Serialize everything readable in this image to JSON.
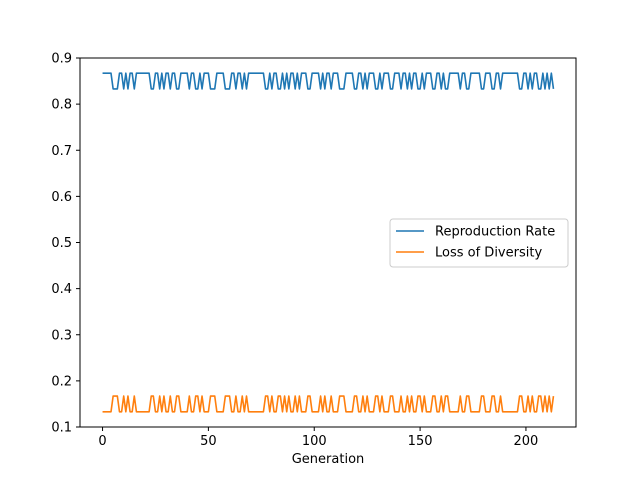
{
  "chart_data": {
    "type": "line",
    "title": "",
    "xlabel": "Generation",
    "ylabel": "",
    "xlim": [
      -10.65,
      223.65
    ],
    "ylim": [
      0.1,
      0.9
    ],
    "x_ticks": [
      0,
      50,
      100,
      150,
      200
    ],
    "y_ticks": [
      0.1,
      0.2,
      0.3,
      0.4,
      0.5,
      0.6,
      0.7,
      0.8,
      0.9
    ],
    "grid": false,
    "legend_position": "center-right",
    "x": [
      0,
      1,
      2,
      3,
      4,
      5,
      6,
      7,
      8,
      9,
      10,
      11,
      12,
      13,
      14,
      15,
      16,
      17,
      18,
      19,
      20,
      21,
      22,
      23,
      24,
      25,
      26,
      27,
      28,
      29,
      30,
      31,
      32,
      33,
      34,
      35,
      36,
      37,
      38,
      39,
      40,
      41,
      42,
      43,
      44,
      45,
      46,
      47,
      48,
      49,
      50,
      51,
      52,
      53,
      54,
      55,
      56,
      57,
      58,
      59,
      60,
      61,
      62,
      63,
      64,
      65,
      66,
      67,
      68,
      69,
      70,
      71,
      72,
      73,
      74,
      75,
      76,
      77,
      78,
      79,
      80,
      81,
      82,
      83,
      84,
      85,
      86,
      87,
      88,
      89,
      90,
      91,
      92,
      93,
      94,
      95,
      96,
      97,
      98,
      99,
      100,
      101,
      102,
      103,
      104,
      105,
      106,
      107,
      108,
      109,
      110,
      111,
      112,
      113,
      114,
      115,
      116,
      117,
      118,
      119,
      120,
      121,
      122,
      123,
      124,
      125,
      126,
      127,
      128,
      129,
      130,
      131,
      132,
      133,
      134,
      135,
      136,
      137,
      138,
      139,
      140,
      141,
      142,
      143,
      144,
      145,
      146,
      147,
      148,
      149,
      150,
      151,
      152,
      153,
      154,
      155,
      156,
      157,
      158,
      159,
      160,
      161,
      162,
      163,
      164,
      165,
      166,
      167,
      168,
      169,
      170,
      171,
      172,
      173,
      174,
      175,
      176,
      177,
      178,
      179,
      180,
      181,
      182,
      183,
      184,
      185,
      186,
      187,
      188,
      189,
      190,
      191,
      192,
      193,
      194,
      195,
      196,
      197,
      198,
      199,
      200,
      201,
      202,
      203,
      204,
      205,
      206,
      207,
      208,
      209,
      210,
      211,
      212,
      213
    ],
    "series": [
      {
        "name": "Reproduction Rate",
        "color": "#1f77b4",
        "values": [
          0.867,
          0.867,
          0.867,
          0.867,
          0.867,
          0.833,
          0.833,
          0.833,
          0.867,
          0.867,
          0.833,
          0.867,
          0.833,
          0.867,
          0.867,
          0.833,
          0.867,
          0.867,
          0.867,
          0.867,
          0.867,
          0.867,
          0.867,
          0.833,
          0.833,
          0.867,
          0.867,
          0.833,
          0.867,
          0.833,
          0.867,
          0.867,
          0.833,
          0.867,
          0.867,
          0.833,
          0.833,
          0.867,
          0.867,
          0.867,
          0.867,
          0.833,
          0.867,
          0.867,
          0.833,
          0.833,
          0.867,
          0.833,
          0.867,
          0.867,
          0.867,
          0.833,
          0.833,
          0.833,
          0.867,
          0.867,
          0.867,
          0.867,
          0.833,
          0.833,
          0.833,
          0.867,
          0.867,
          0.833,
          0.867,
          0.867,
          0.833,
          0.867,
          0.833,
          0.867,
          0.867,
          0.867,
          0.867,
          0.867,
          0.867,
          0.867,
          0.867,
          0.833,
          0.833,
          0.867,
          0.833,
          0.867,
          0.867,
          0.833,
          0.833,
          0.867,
          0.833,
          0.867,
          0.833,
          0.867,
          0.867,
          0.833,
          0.867,
          0.833,
          0.867,
          0.867,
          0.867,
          0.833,
          0.833,
          0.867,
          0.867,
          0.867,
          0.867,
          0.833,
          0.867,
          0.833,
          0.867,
          0.867,
          0.833,
          0.867,
          0.867,
          0.867,
          0.833,
          0.833,
          0.833,
          0.867,
          0.867,
          0.867,
          0.867,
          0.833,
          0.833,
          0.867,
          0.867,
          0.833,
          0.867,
          0.833,
          0.867,
          0.867,
          0.867,
          0.833,
          0.833,
          0.867,
          0.833,
          0.867,
          0.867,
          0.867,
          0.833,
          0.833,
          0.867,
          0.867,
          0.867,
          0.833,
          0.867,
          0.867,
          0.833,
          0.867,
          0.833,
          0.867,
          0.867,
          0.833,
          0.833,
          0.867,
          0.833,
          0.867,
          0.867,
          0.867,
          0.833,
          0.833,
          0.867,
          0.867,
          0.833,
          0.867,
          0.833,
          0.833,
          0.867,
          0.867,
          0.867,
          0.867,
          0.867,
          0.833,
          0.867,
          0.867,
          0.833,
          0.833,
          0.867,
          0.867,
          0.867,
          0.867,
          0.867,
          0.833,
          0.833,
          0.867,
          0.867,
          0.867,
          0.833,
          0.833,
          0.867,
          0.867,
          0.833,
          0.867,
          0.867,
          0.867,
          0.867,
          0.867,
          0.867,
          0.867,
          0.867,
          0.833,
          0.833,
          0.867,
          0.867,
          0.833,
          0.867,
          0.833,
          0.867,
          0.867,
          0.833,
          0.833,
          0.867,
          0.833,
          0.867,
          0.833,
          0.867,
          0.833
        ]
      },
      {
        "name": "Loss of Diversity",
        "color": "#ff7f0e",
        "values": [
          0.133,
          0.133,
          0.133,
          0.133,
          0.133,
          0.167,
          0.167,
          0.167,
          0.133,
          0.133,
          0.167,
          0.133,
          0.167,
          0.133,
          0.133,
          0.167,
          0.133,
          0.133,
          0.133,
          0.133,
          0.133,
          0.133,
          0.133,
          0.167,
          0.167,
          0.133,
          0.133,
          0.167,
          0.133,
          0.167,
          0.133,
          0.133,
          0.167,
          0.133,
          0.133,
          0.167,
          0.167,
          0.133,
          0.133,
          0.133,
          0.133,
          0.167,
          0.133,
          0.133,
          0.167,
          0.167,
          0.133,
          0.167,
          0.133,
          0.133,
          0.133,
          0.167,
          0.167,
          0.167,
          0.133,
          0.133,
          0.133,
          0.133,
          0.167,
          0.167,
          0.167,
          0.133,
          0.133,
          0.167,
          0.133,
          0.133,
          0.167,
          0.133,
          0.167,
          0.133,
          0.133,
          0.133,
          0.133,
          0.133,
          0.133,
          0.133,
          0.133,
          0.167,
          0.167,
          0.133,
          0.167,
          0.133,
          0.133,
          0.167,
          0.167,
          0.133,
          0.167,
          0.133,
          0.167,
          0.133,
          0.133,
          0.167,
          0.133,
          0.167,
          0.133,
          0.133,
          0.133,
          0.167,
          0.167,
          0.133,
          0.133,
          0.133,
          0.133,
          0.167,
          0.133,
          0.167,
          0.133,
          0.133,
          0.167,
          0.133,
          0.133,
          0.133,
          0.167,
          0.167,
          0.167,
          0.133,
          0.133,
          0.133,
          0.133,
          0.167,
          0.167,
          0.133,
          0.133,
          0.167,
          0.133,
          0.167,
          0.133,
          0.133,
          0.133,
          0.167,
          0.167,
          0.133,
          0.167,
          0.133,
          0.133,
          0.133,
          0.167,
          0.167,
          0.133,
          0.133,
          0.133,
          0.167,
          0.133,
          0.133,
          0.167,
          0.133,
          0.167,
          0.133,
          0.133,
          0.167,
          0.167,
          0.133,
          0.167,
          0.133,
          0.133,
          0.133,
          0.167,
          0.167,
          0.133,
          0.133,
          0.167,
          0.133,
          0.167,
          0.167,
          0.133,
          0.133,
          0.133,
          0.133,
          0.133,
          0.167,
          0.133,
          0.133,
          0.167,
          0.167,
          0.133,
          0.133,
          0.133,
          0.133,
          0.133,
          0.167,
          0.167,
          0.133,
          0.133,
          0.133,
          0.167,
          0.167,
          0.133,
          0.133,
          0.167,
          0.133,
          0.133,
          0.133,
          0.133,
          0.133,
          0.133,
          0.133,
          0.133,
          0.167,
          0.167,
          0.133,
          0.133,
          0.167,
          0.133,
          0.167,
          0.133,
          0.133,
          0.167,
          0.167,
          0.133,
          0.167,
          0.133,
          0.167,
          0.133,
          0.167
        ]
      }
    ]
  }
}
